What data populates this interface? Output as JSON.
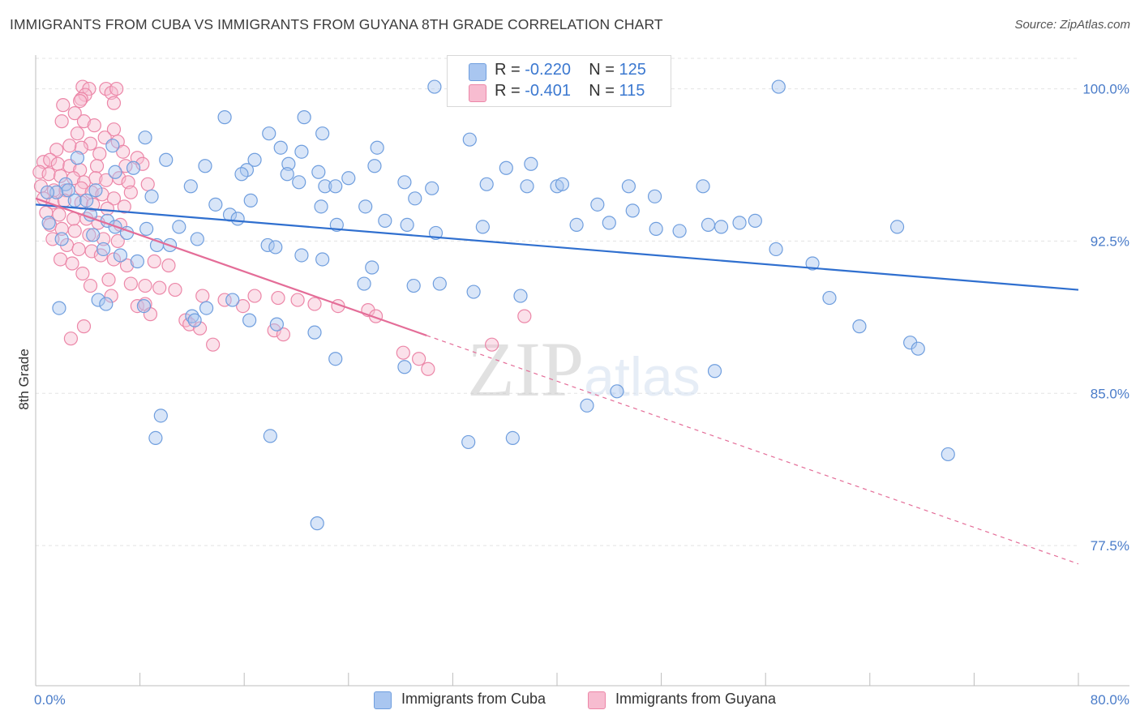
{
  "title": "IMMIGRANTS FROM CUBA VS IMMIGRANTS FROM GUYANA 8TH GRADE CORRELATION CHART",
  "source": "Source: ZipAtlas.com",
  "legend_stats": [
    {
      "r_label": "R = ",
      "r_value": "-0.220",
      "n_label": "N = ",
      "n_value": "125"
    },
    {
      "r_label": "R = ",
      "r_value": "-0.401",
      "n_label": "N = ",
      "n_value": "115"
    }
  ],
  "colors": {
    "cuba_fill": "#a9c6f0",
    "cuba_stroke": "#6f9ede",
    "cuba_line": "#2f6fcf",
    "guyana_fill": "#f7bcd0",
    "guyana_stroke": "#ec87a8",
    "guyana_line": "#e46d98",
    "tick_label": "#4a7cc9",
    "grid": "#e3e3e3"
  },
  "chart_data": {
    "type": "scatter",
    "title": "IMMIGRANTS FROM CUBA VS IMMIGRANTS FROM GUYANA 8TH GRADE CORRELATION CHART",
    "xlabel": "",
    "ylabel": "8th Grade",
    "xlim": [
      0,
      80
    ],
    "ylim": [
      70.6,
      101.5
    ],
    "x_tick_labels": [
      "0.0%",
      "80.0%"
    ],
    "y_ticks": [
      100.0,
      92.5,
      85.0,
      77.5
    ],
    "y_tick_labels": [
      "100.0%",
      "92.5%",
      "85.0%",
      "77.5%"
    ],
    "grid": "horizontal dashed",
    "legend_position": "top-center",
    "watermark": "ZIPatlas",
    "series": [
      {
        "name": "Immigrants from Cuba",
        "r": -0.22,
        "n": 125,
        "trend": {
          "x": [
            0,
            80
          ],
          "y": [
            94.3,
            90.1
          ]
        },
        "points": [
          [
            30.6,
            100.1
          ],
          [
            57.0,
            100.1
          ],
          [
            14.5,
            98.6
          ],
          [
            20.6,
            98.6
          ],
          [
            8.4,
            97.6
          ],
          [
            17.9,
            97.8
          ],
          [
            22.0,
            97.8
          ],
          [
            33.3,
            97.5
          ],
          [
            5.9,
            97.2
          ],
          [
            18.8,
            97.1
          ],
          [
            26.2,
            97.1
          ],
          [
            20.4,
            96.9
          ],
          [
            3.2,
            96.6
          ],
          [
            10.0,
            96.5
          ],
          [
            16.8,
            96.5
          ],
          [
            19.4,
            96.3
          ],
          [
            26.0,
            96.2
          ],
          [
            36.1,
            96.1
          ],
          [
            38.0,
            96.3
          ],
          [
            7.5,
            96.1
          ],
          [
            6.1,
            95.9
          ],
          [
            16.2,
            96.0
          ],
          [
            19.3,
            95.8
          ],
          [
            21.7,
            95.9
          ],
          [
            13.0,
            96.2
          ],
          [
            15.8,
            95.8
          ],
          [
            24.0,
            95.6
          ],
          [
            20.2,
            95.4
          ],
          [
            28.3,
            95.4
          ],
          [
            2.3,
            95.3
          ],
          [
            4.6,
            95.0
          ],
          [
            11.9,
            95.2
          ],
          [
            22.2,
            95.2
          ],
          [
            23.0,
            95.2
          ],
          [
            30.4,
            95.1
          ],
          [
            34.6,
            95.3
          ],
          [
            37.7,
            95.2
          ],
          [
            40.0,
            95.2
          ],
          [
            40.4,
            95.3
          ],
          [
            45.5,
            95.2
          ],
          [
            51.2,
            95.2
          ],
          [
            1.6,
            94.9
          ],
          [
            2.5,
            95.0
          ],
          [
            3.0,
            94.5
          ],
          [
            3.9,
            94.5
          ],
          [
            0.9,
            94.9
          ],
          [
            8.9,
            94.7
          ],
          [
            13.8,
            94.3
          ],
          [
            16.5,
            94.5
          ],
          [
            21.9,
            94.2
          ],
          [
            25.3,
            94.2
          ],
          [
            29.1,
            94.6
          ],
          [
            43.1,
            94.3
          ],
          [
            45.8,
            94.0
          ],
          [
            47.5,
            94.7
          ],
          [
            14.9,
            93.8
          ],
          [
            15.5,
            93.6
          ],
          [
            1.0,
            93.4
          ],
          [
            4.2,
            93.8
          ],
          [
            5.5,
            93.5
          ],
          [
            6.1,
            93.2
          ],
          [
            8.5,
            93.1
          ],
          [
            7.0,
            92.9
          ],
          [
            11.0,
            93.2
          ],
          [
            23.1,
            93.3
          ],
          [
            26.8,
            93.5
          ],
          [
            28.5,
            93.3
          ],
          [
            30.7,
            92.9
          ],
          [
            34.3,
            93.2
          ],
          [
            41.5,
            93.3
          ],
          [
            44.0,
            93.4
          ],
          [
            47.6,
            93.1
          ],
          [
            49.4,
            93.0
          ],
          [
            51.6,
            93.3
          ],
          [
            52.6,
            93.2
          ],
          [
            54.0,
            93.4
          ],
          [
            55.2,
            93.5
          ],
          [
            2.0,
            92.6
          ],
          [
            4.4,
            92.8
          ],
          [
            5.2,
            92.1
          ],
          [
            6.5,
            91.8
          ],
          [
            7.8,
            91.5
          ],
          [
            9.3,
            92.3
          ],
          [
            10.3,
            92.3
          ],
          [
            12.4,
            92.6
          ],
          [
            17.8,
            92.3
          ],
          [
            18.4,
            92.2
          ],
          [
            20.4,
            91.8
          ],
          [
            22.0,
            91.6
          ],
          [
            25.8,
            91.2
          ],
          [
            29.0,
            90.3
          ],
          [
            31.0,
            90.4
          ],
          [
            33.6,
            90.0
          ],
          [
            37.2,
            89.8
          ],
          [
            8.3,
            89.3
          ],
          [
            12.0,
            88.8
          ],
          [
            12.2,
            88.6
          ],
          [
            1.8,
            89.2
          ],
          [
            4.8,
            89.6
          ],
          [
            5.4,
            89.4
          ],
          [
            13.1,
            89.2
          ],
          [
            15.1,
            89.6
          ],
          [
            16.4,
            88.6
          ],
          [
            18.5,
            88.4
          ],
          [
            21.4,
            88.0
          ],
          [
            23.0,
            86.7
          ],
          [
            28.3,
            86.3
          ],
          [
            44.6,
            85.1
          ],
          [
            42.3,
            84.4
          ],
          [
            52.1,
            86.1
          ],
          [
            9.6,
            83.9
          ],
          [
            9.2,
            82.8
          ],
          [
            18.0,
            82.9
          ],
          [
            36.6,
            82.8
          ],
          [
            33.2,
            82.6
          ],
          [
            21.6,
            78.6
          ],
          [
            56.8,
            92.1
          ],
          [
            59.6,
            91.4
          ],
          [
            66.1,
            93.2
          ],
          [
            60.9,
            89.7
          ],
          [
            67.1,
            87.5
          ],
          [
            63.2,
            88.3
          ],
          [
            67.7,
            87.2
          ],
          [
            70.0,
            82.0
          ],
          [
            25.2,
            90.4
          ]
        ]
      },
      {
        "name": "Immigrants from Guyana",
        "r": -0.401,
        "n": 115,
        "trend": {
          "x": [
            0,
            80
          ],
          "y": [
            94.6,
            76.6
          ],
          "solid_until": 30.0
        },
        "points": [
          [
            3.6,
            100.1
          ],
          [
            4.1,
            100.0
          ],
          [
            5.4,
            100.0
          ],
          [
            5.8,
            99.8
          ],
          [
            6.2,
            100.0
          ],
          [
            3.8,
            99.7
          ],
          [
            3.5,
            99.5
          ],
          [
            2.1,
            99.2
          ],
          [
            3.4,
            99.4
          ],
          [
            6.0,
            99.3
          ],
          [
            3.0,
            98.8
          ],
          [
            3.7,
            98.4
          ],
          [
            2.0,
            98.4
          ],
          [
            4.5,
            98.2
          ],
          [
            3.2,
            97.8
          ],
          [
            6.0,
            98.0
          ],
          [
            5.3,
            97.6
          ],
          [
            6.3,
            97.4
          ],
          [
            4.2,
            97.3
          ],
          [
            3.5,
            97.1
          ],
          [
            1.6,
            97.0
          ],
          [
            2.6,
            97.2
          ],
          [
            6.7,
            96.9
          ],
          [
            4.9,
            96.8
          ],
          [
            7.8,
            96.6
          ],
          [
            8.2,
            96.3
          ],
          [
            6.9,
            96.2
          ],
          [
            4.7,
            96.2
          ],
          [
            0.6,
            96.4
          ],
          [
            1.1,
            96.5
          ],
          [
            1.7,
            96.3
          ],
          [
            2.6,
            96.2
          ],
          [
            3.4,
            96.0
          ],
          [
            0.3,
            95.9
          ],
          [
            1.0,
            95.8
          ],
          [
            1.9,
            95.7
          ],
          [
            2.9,
            95.6
          ],
          [
            3.7,
            95.4
          ],
          [
            4.6,
            95.6
          ],
          [
            5.4,
            95.5
          ],
          [
            6.4,
            95.6
          ],
          [
            7.1,
            95.4
          ],
          [
            8.6,
            95.3
          ],
          [
            0.4,
            95.2
          ],
          [
            1.4,
            95.0
          ],
          [
            2.3,
            95.0
          ],
          [
            3.5,
            95.1
          ],
          [
            4.3,
            94.9
          ],
          [
            5.1,
            94.8
          ],
          [
            6.0,
            94.6
          ],
          [
            7.3,
            94.9
          ],
          [
            0.6,
            94.6
          ],
          [
            1.3,
            94.4
          ],
          [
            2.2,
            94.5
          ],
          [
            3.5,
            94.4
          ],
          [
            4.4,
            94.3
          ],
          [
            5.5,
            94.1
          ],
          [
            6.8,
            94.2
          ],
          [
            0.8,
            93.9
          ],
          [
            1.8,
            93.8
          ],
          [
            2.9,
            93.6
          ],
          [
            3.9,
            93.6
          ],
          [
            4.8,
            93.4
          ],
          [
            6.5,
            93.3
          ],
          [
            1.1,
            93.3
          ],
          [
            2.0,
            93.1
          ],
          [
            3.0,
            93.0
          ],
          [
            4.1,
            92.8
          ],
          [
            5.2,
            92.6
          ],
          [
            6.3,
            92.5
          ],
          [
            1.3,
            92.6
          ],
          [
            2.4,
            92.3
          ],
          [
            3.3,
            92.1
          ],
          [
            4.3,
            92.0
          ],
          [
            5.0,
            91.8
          ],
          [
            6.0,
            91.6
          ],
          [
            7.0,
            91.3
          ],
          [
            1.9,
            91.6
          ],
          [
            2.8,
            91.4
          ],
          [
            9.1,
            91.5
          ],
          [
            10.2,
            91.3
          ],
          [
            3.6,
            90.9
          ],
          [
            5.6,
            90.6
          ],
          [
            7.3,
            90.4
          ],
          [
            8.4,
            90.3
          ],
          [
            9.5,
            90.2
          ],
          [
            10.7,
            90.1
          ],
          [
            12.8,
            89.8
          ],
          [
            14.5,
            89.6
          ],
          [
            16.8,
            89.8
          ],
          [
            18.6,
            89.7
          ],
          [
            20.1,
            89.6
          ],
          [
            21.4,
            89.4
          ],
          [
            23.2,
            89.3
          ],
          [
            25.5,
            89.1
          ],
          [
            26.1,
            88.8
          ],
          [
            4.2,
            90.3
          ],
          [
            5.8,
            89.8
          ],
          [
            7.8,
            89.3
          ],
          [
            8.4,
            89.4
          ],
          [
            8.8,
            88.9
          ],
          [
            3.7,
            88.3
          ],
          [
            2.7,
            87.7
          ],
          [
            11.5,
            88.6
          ],
          [
            11.8,
            88.4
          ],
          [
            12.6,
            88.2
          ],
          [
            18.3,
            88.1
          ],
          [
            19.0,
            87.9
          ],
          [
            13.6,
            87.4
          ],
          [
            28.2,
            87.0
          ],
          [
            29.4,
            86.7
          ],
          [
            30.1,
            86.2
          ],
          [
            35.0,
            87.4
          ],
          [
            37.5,
            88.8
          ],
          [
            15.9,
            89.3
          ]
        ]
      }
    ]
  }
}
